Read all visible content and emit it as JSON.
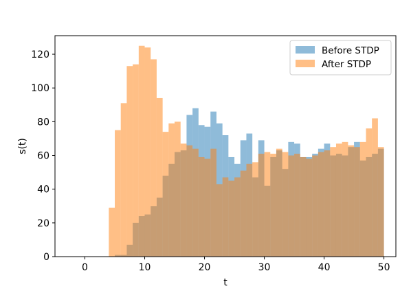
{
  "chart_data": {
    "type": "bar",
    "xlabel": "t",
    "ylabel": "s(t)",
    "xlim": [
      -5,
      52
    ],
    "ylim": [
      0,
      131
    ],
    "xticks": [
      0,
      10,
      20,
      30,
      40,
      50
    ],
    "yticks": [
      0,
      20,
      40,
      60,
      80,
      100,
      120
    ],
    "bin_edges": [
      4,
      5,
      6,
      7,
      8,
      9,
      10,
      11,
      12,
      13,
      14,
      15,
      16,
      17,
      18,
      19,
      20,
      21,
      22,
      23,
      24,
      25,
      26,
      27,
      28,
      29,
      30,
      31,
      32,
      33,
      34,
      35,
      36,
      37,
      38,
      39,
      40,
      41,
      42,
      43,
      44,
      45,
      46,
      47,
      48,
      49,
      50
    ],
    "series": [
      {
        "name": "Before STDP",
        "color": "#1f77b4",
        "values": [
          0,
          1,
          1,
          7,
          20,
          24,
          25,
          30,
          35,
          48,
          55,
          62,
          63,
          84,
          88,
          78,
          77,
          86,
          79,
          72,
          59,
          55,
          69,
          73,
          47,
          69,
          42,
          59,
          63,
          52,
          68,
          67,
          59,
          59,
          61,
          64,
          67,
          60,
          61,
          60,
          65,
          68,
          57,
          59,
          61,
          64
        ]
      },
      {
        "name": "After STDP",
        "color": "#ff7f0e",
        "values": [
          29,
          75,
          91,
          113,
          114,
          125,
          124,
          117,
          94,
          74,
          79,
          80,
          67,
          66,
          64,
          59,
          58,
          64,
          43,
          47,
          45,
          47,
          51,
          55,
          56,
          61,
          62,
          61,
          64,
          62,
          60,
          61,
          59,
          58,
          60,
          62,
          63,
          65,
          67,
          68,
          66,
          65,
          68,
          76,
          82,
          65
        ]
      }
    ],
    "legend": {
      "placement": "top-right"
    },
    "grid": false
  }
}
